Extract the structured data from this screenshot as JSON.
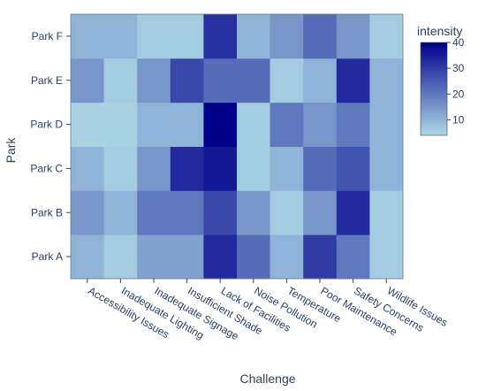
{
  "chart_data": {
    "type": "heatmap",
    "title": "",
    "xlabel": "Challenge",
    "ylabel": "Park",
    "x": [
      "Accessibility Issues",
      "Inadequate Lighting",
      "Inadequate Signage",
      "Insufficient Shade",
      "Lack of Facilities",
      "Noise Pollution",
      "Temperature",
      "Poor Maintenance",
      "Safety Concerns",
      "Wildlife Issues"
    ],
    "y": [
      "Park A",
      "Park B",
      "Park C",
      "Park D",
      "Park E",
      "Park F"
    ],
    "z": [
      [
        10,
        6,
        13,
        13,
        33,
        22,
        10,
        30,
        20,
        6
      ],
      [
        15,
        10,
        20,
        20,
        28,
        15,
        6,
        15,
        33,
        6
      ],
      [
        10,
        6,
        15,
        33,
        36,
        6,
        10,
        22,
        26,
        10
      ],
      [
        5,
        5,
        10,
        10,
        40,
        6,
        20,
        15,
        20,
        10
      ],
      [
        15,
        6,
        15,
        28,
        22,
        22,
        6,
        10,
        33,
        10
      ],
      [
        10,
        10,
        6,
        6,
        32,
        10,
        15,
        22,
        15,
        6
      ]
    ],
    "colorbar": {
      "title": "intensity",
      "range": [
        4,
        40
      ],
      "tickvals": [
        10,
        20,
        30,
        40
      ],
      "colors": [
        "#ADD8E6",
        "#00008B"
      ]
    },
    "grid": false,
    "legend": "right"
  }
}
